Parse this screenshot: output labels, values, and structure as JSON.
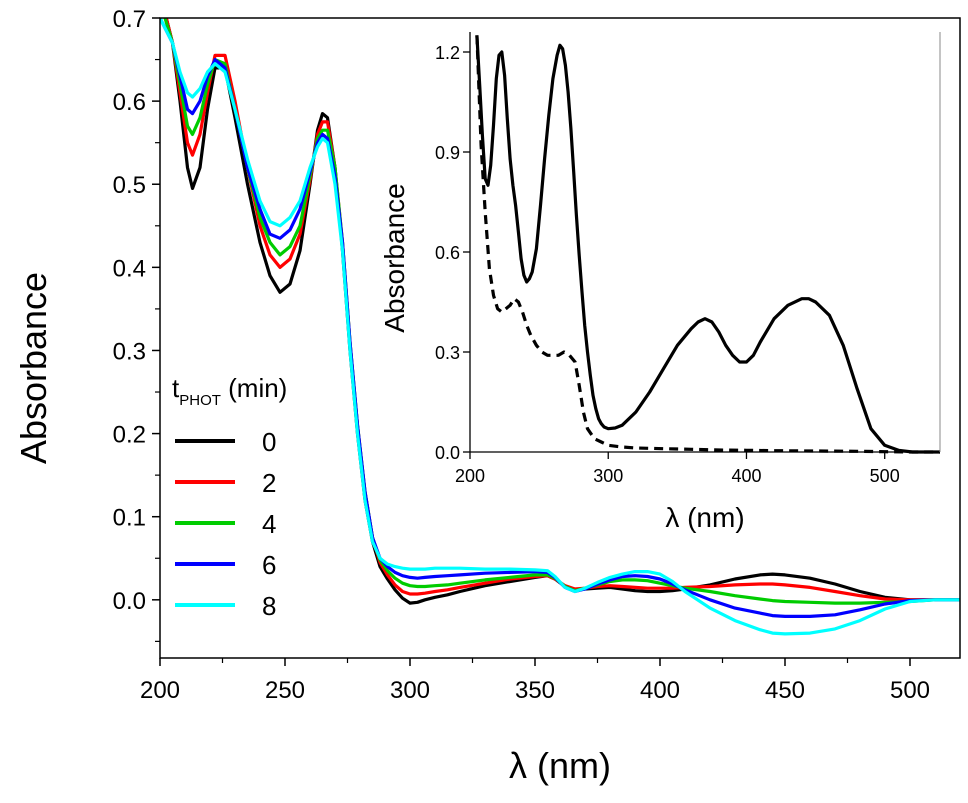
{
  "chart_data": [
    {
      "type": "line",
      "xlabel": "λ (nm)",
      "ylabel": "Absorbance",
      "xlim": [
        200,
        520
      ],
      "ylim": [
        -0.07,
        0.7
      ],
      "xticks": [
        "200",
        "250",
        "300",
        "350",
        "400",
        "450",
        "500"
      ],
      "yticks": [
        "0.0",
        "0.1",
        "0.2",
        "0.3",
        "0.4",
        "0.5",
        "0.6",
        "0.7"
      ],
      "legend": {
        "title_main": "t",
        "title_sub": "PHOT",
        "title_unit": " (min)",
        "placement": "left"
      },
      "series": [
        {
          "name": "0",
          "color": "#000000",
          "x": [
            200,
            205,
            208,
            211,
            213,
            216,
            219,
            222,
            226,
            230,
            235,
            240,
            244,
            248,
            252,
            256,
            260,
            263,
            265,
            267,
            270,
            273,
            276,
            279,
            282,
            285,
            288,
            291,
            294,
            297,
            300,
            303,
            306,
            310,
            315,
            320,
            330,
            340,
            350,
            355,
            358,
            362,
            366,
            370,
            375,
            380,
            385,
            390,
            395,
            400,
            405,
            410,
            420,
            430,
            440,
            445,
            450,
            460,
            470,
            480,
            490,
            500,
            510,
            520
          ],
          "y": [
            0.73,
            0.67,
            0.6,
            0.52,
            0.495,
            0.52,
            0.59,
            0.64,
            0.64,
            0.58,
            0.5,
            0.43,
            0.39,
            0.37,
            0.38,
            0.42,
            0.5,
            0.565,
            0.585,
            0.58,
            0.52,
            0.42,
            0.3,
            0.2,
            0.12,
            0.07,
            0.04,
            0.025,
            0.012,
            0.002,
            -0.004,
            -0.003,
            0.0,
            0.003,
            0.006,
            0.01,
            0.017,
            0.022,
            0.027,
            0.029,
            0.025,
            0.016,
            0.012,
            0.013,
            0.014,
            0.015,
            0.013,
            0.011,
            0.01,
            0.01,
            0.011,
            0.013,
            0.018,
            0.025,
            0.03,
            0.031,
            0.03,
            0.026,
            0.019,
            0.01,
            0.003,
            0.0,
            0.0,
            0.0
          ]
        },
        {
          "name": "2",
          "color": "#ff0000",
          "x": [
            200,
            205,
            208,
            211,
            213,
            216,
            219,
            222,
            226,
            230,
            235,
            240,
            244,
            248,
            252,
            256,
            260,
            263,
            265,
            267,
            270,
            273,
            276,
            279,
            282,
            285,
            288,
            291,
            294,
            297,
            300,
            303,
            306,
            310,
            315,
            320,
            330,
            340,
            350,
            355,
            358,
            362,
            366,
            370,
            375,
            380,
            385,
            390,
            395,
            400,
            405,
            410,
            420,
            430,
            440,
            445,
            450,
            460,
            470,
            480,
            490,
            500,
            510,
            520
          ],
          "y": [
            0.73,
            0.67,
            0.61,
            0.55,
            0.535,
            0.56,
            0.61,
            0.655,
            0.655,
            0.6,
            0.52,
            0.45,
            0.415,
            0.4,
            0.41,
            0.44,
            0.505,
            0.56,
            0.575,
            0.575,
            0.52,
            0.43,
            0.31,
            0.21,
            0.13,
            0.075,
            0.045,
            0.03,
            0.018,
            0.01,
            0.007,
            0.007,
            0.008,
            0.01,
            0.012,
            0.015,
            0.02,
            0.025,
            0.028,
            0.029,
            0.025,
            0.017,
            0.013,
            0.014,
            0.016,
            0.017,
            0.016,
            0.015,
            0.014,
            0.014,
            0.014,
            0.015,
            0.016,
            0.018,
            0.019,
            0.019,
            0.018,
            0.015,
            0.01,
            0.005,
            0.001,
            0.0,
            0.0,
            0.0
          ]
        },
        {
          "name": "4",
          "color": "#00cc00",
          "x": [
            200,
            205,
            208,
            211,
            213,
            216,
            219,
            222,
            226,
            230,
            235,
            240,
            244,
            248,
            252,
            256,
            260,
            263,
            265,
            267,
            270,
            273,
            276,
            279,
            282,
            285,
            288,
            291,
            294,
            297,
            300,
            303,
            306,
            310,
            315,
            320,
            330,
            340,
            350,
            355,
            358,
            362,
            366,
            370,
            375,
            380,
            385,
            390,
            395,
            400,
            405,
            410,
            420,
            430,
            440,
            445,
            450,
            460,
            470,
            480,
            490,
            500,
            510,
            520
          ],
          "y": [
            0.72,
            0.67,
            0.62,
            0.57,
            0.56,
            0.58,
            0.62,
            0.65,
            0.645,
            0.59,
            0.52,
            0.46,
            0.43,
            0.415,
            0.425,
            0.45,
            0.51,
            0.555,
            0.565,
            0.565,
            0.52,
            0.43,
            0.31,
            0.21,
            0.13,
            0.075,
            0.048,
            0.035,
            0.026,
            0.02,
            0.017,
            0.016,
            0.016,
            0.017,
            0.018,
            0.02,
            0.024,
            0.027,
            0.03,
            0.03,
            0.026,
            0.016,
            0.011,
            0.014,
            0.018,
            0.022,
            0.024,
            0.024,
            0.023,
            0.02,
            0.017,
            0.014,
            0.01,
            0.005,
            0.001,
            -0.001,
            -0.002,
            -0.003,
            -0.004,
            -0.004,
            -0.003,
            -0.002,
            0.0,
            0.0
          ]
        },
        {
          "name": "6",
          "color": "#0000ff",
          "x": [
            200,
            205,
            208,
            211,
            213,
            216,
            219,
            222,
            226,
            230,
            235,
            240,
            244,
            248,
            252,
            256,
            260,
            263,
            265,
            267,
            270,
            273,
            276,
            279,
            282,
            285,
            288,
            291,
            294,
            297,
            300,
            303,
            306,
            310,
            315,
            320,
            330,
            340,
            350,
            355,
            358,
            362,
            366,
            370,
            375,
            380,
            385,
            390,
            395,
            400,
            405,
            410,
            420,
            430,
            440,
            445,
            450,
            460,
            470,
            480,
            490,
            500,
            510,
            520
          ],
          "y": [
            0.7,
            0.67,
            0.63,
            0.59,
            0.585,
            0.6,
            0.63,
            0.65,
            0.64,
            0.59,
            0.52,
            0.47,
            0.44,
            0.435,
            0.445,
            0.47,
            0.515,
            0.55,
            0.56,
            0.555,
            0.51,
            0.43,
            0.31,
            0.21,
            0.13,
            0.075,
            0.05,
            0.04,
            0.033,
            0.029,
            0.027,
            0.026,
            0.027,
            0.028,
            0.029,
            0.03,
            0.032,
            0.033,
            0.034,
            0.033,
            0.027,
            0.015,
            0.01,
            0.013,
            0.019,
            0.024,
            0.028,
            0.029,
            0.028,
            0.025,
            0.019,
            0.012,
            0.0,
            -0.01,
            -0.016,
            -0.019,
            -0.02,
            -0.02,
            -0.018,
            -0.012,
            -0.005,
            -0.001,
            0.0,
            0.0
          ]
        },
        {
          "name": "8",
          "color": "#00ffff",
          "x": [
            200,
            205,
            208,
            211,
            213,
            216,
            219,
            222,
            226,
            230,
            235,
            240,
            244,
            248,
            252,
            256,
            260,
            263,
            265,
            267,
            270,
            273,
            276,
            279,
            282,
            285,
            288,
            291,
            294,
            297,
            300,
            303,
            306,
            310,
            315,
            320,
            330,
            340,
            350,
            355,
            358,
            362,
            366,
            370,
            375,
            380,
            385,
            390,
            395,
            400,
            405,
            410,
            420,
            430,
            440,
            445,
            450,
            460,
            470,
            480,
            490,
            500,
            510,
            520
          ],
          "y": [
            0.7,
            0.67,
            0.635,
            0.61,
            0.605,
            0.615,
            0.635,
            0.645,
            0.635,
            0.59,
            0.53,
            0.48,
            0.455,
            0.45,
            0.46,
            0.48,
            0.52,
            0.545,
            0.555,
            0.55,
            0.5,
            0.42,
            0.3,
            0.2,
            0.12,
            0.07,
            0.05,
            0.043,
            0.04,
            0.038,
            0.037,
            0.037,
            0.037,
            0.038,
            0.038,
            0.038,
            0.037,
            0.037,
            0.036,
            0.035,
            0.028,
            0.015,
            0.01,
            0.014,
            0.021,
            0.027,
            0.031,
            0.034,
            0.034,
            0.031,
            0.022,
            0.01,
            -0.01,
            -0.025,
            -0.036,
            -0.04,
            -0.041,
            -0.04,
            -0.035,
            -0.025,
            -0.011,
            -0.002,
            0.0,
            0.0
          ]
        }
      ]
    },
    {
      "type": "line",
      "xlabel": "λ (nm)",
      "ylabel": "Absorbance",
      "xlim": [
        200,
        540
      ],
      "ylim": [
        0,
        1.26
      ],
      "xticks": [
        "200",
        "300",
        "400",
        "500"
      ],
      "yticks": [
        "0.0",
        "0.3",
        "0.6",
        "0.9",
        "1.2"
      ],
      "series": [
        {
          "style": "solid",
          "color": "#000000",
          "x": [
            205,
            207,
            209,
            211,
            213,
            215,
            217,
            219,
            221,
            223,
            225,
            227,
            229,
            231,
            233,
            235,
            237,
            239,
            241,
            243,
            245,
            248,
            251,
            254,
            257,
            260,
            263,
            265,
            267,
            269,
            271,
            273,
            275,
            277,
            279,
            281,
            283,
            285,
            287,
            289,
            291,
            293,
            295,
            297,
            300,
            305,
            310,
            320,
            330,
            340,
            350,
            360,
            365,
            370,
            375,
            380,
            385,
            390,
            395,
            400,
            405,
            410,
            420,
            430,
            440,
            445,
            450,
            460,
            470,
            480,
            490,
            500,
            510,
            520,
            530,
            540
          ],
          "y": [
            1.25,
            1.1,
            0.95,
            0.82,
            0.8,
            0.86,
            0.98,
            1.12,
            1.19,
            1.2,
            1.13,
            1.0,
            0.88,
            0.8,
            0.74,
            0.66,
            0.58,
            0.53,
            0.51,
            0.52,
            0.54,
            0.61,
            0.74,
            0.88,
            1.01,
            1.12,
            1.19,
            1.22,
            1.21,
            1.16,
            1.08,
            0.97,
            0.84,
            0.71,
            0.59,
            0.48,
            0.38,
            0.3,
            0.23,
            0.17,
            0.13,
            0.1,
            0.085,
            0.075,
            0.07,
            0.072,
            0.08,
            0.12,
            0.18,
            0.25,
            0.32,
            0.37,
            0.39,
            0.4,
            0.39,
            0.36,
            0.32,
            0.29,
            0.27,
            0.27,
            0.29,
            0.33,
            0.4,
            0.44,
            0.46,
            0.46,
            0.45,
            0.41,
            0.32,
            0.19,
            0.07,
            0.02,
            0.005,
            0.0,
            0.0,
            0.0
          ]
        },
        {
          "style": "dashed",
          "color": "#000000",
          "x": [
            205,
            208,
            211,
            214,
            217,
            220,
            223,
            226,
            229,
            232,
            235,
            238,
            241,
            244,
            248,
            252,
            256,
            260,
            264,
            268,
            272,
            276,
            279,
            282,
            285,
            290,
            295,
            300,
            310,
            320,
            340,
            360,
            380,
            400,
            420,
            450,
            480,
            500,
            520,
            540
          ],
          "y": [
            1.25,
            0.92,
            0.72,
            0.55,
            0.47,
            0.43,
            0.42,
            0.43,
            0.44,
            0.46,
            0.45,
            0.42,
            0.38,
            0.35,
            0.32,
            0.3,
            0.29,
            0.29,
            0.29,
            0.3,
            0.29,
            0.27,
            0.2,
            0.12,
            0.07,
            0.04,
            0.03,
            0.02,
            0.015,
            0.012,
            0.01,
            0.008,
            0.006,
            0.005,
            0.004,
            0.003,
            0.002,
            0.001,
            0.0,
            0.0
          ]
        }
      ]
    }
  ]
}
